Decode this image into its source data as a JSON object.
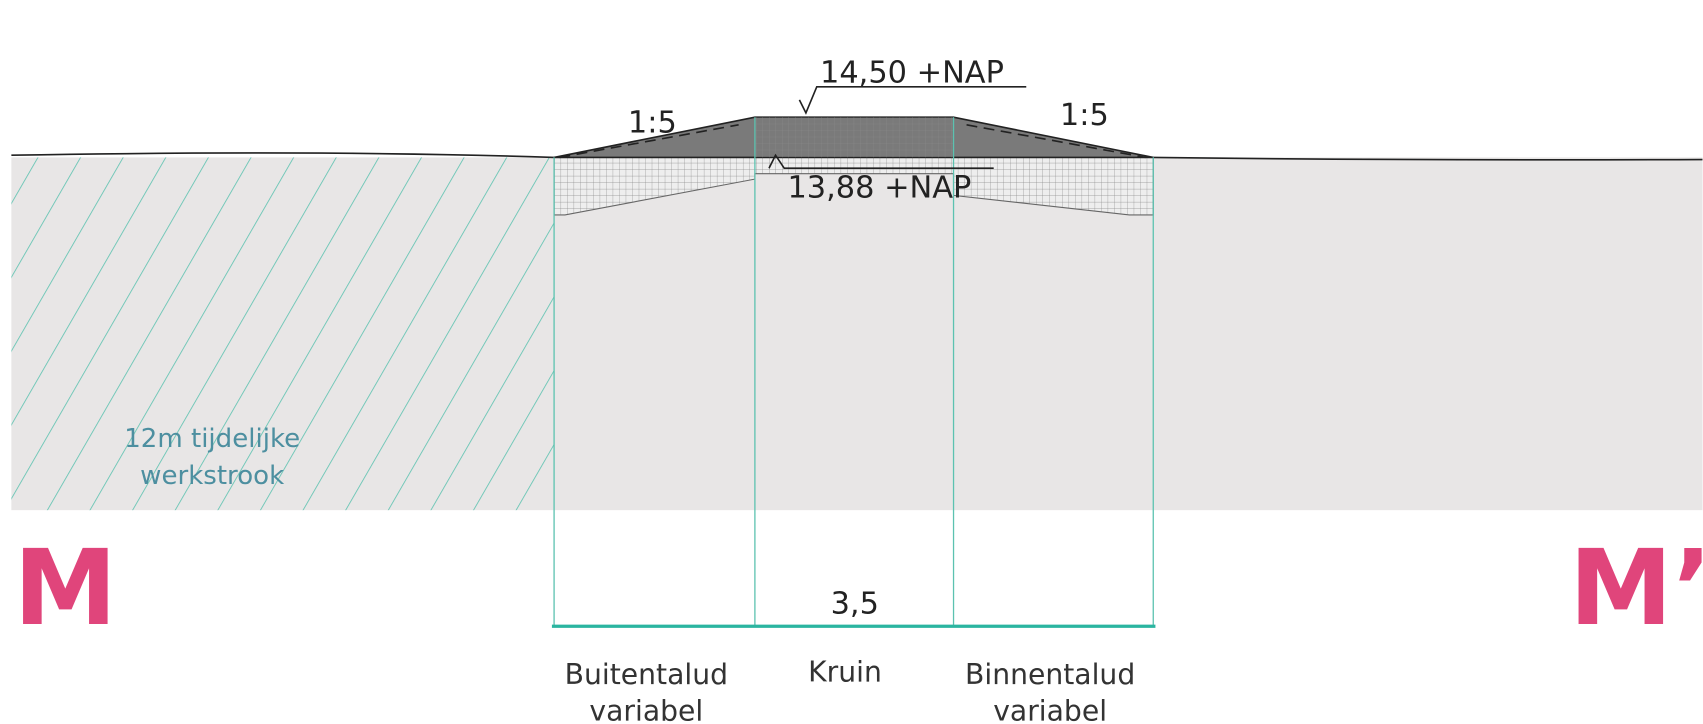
{
  "elevations": {
    "crest": "14,50 +NAP",
    "ground": "13,88 +NAP"
  },
  "slopes": {
    "outer": "1:5",
    "inner": "1:5"
  },
  "work_strip": {
    "line1": "12m tijdelijke",
    "line2": "werkstrook"
  },
  "section": {
    "start": "M",
    "end": "M’"
  },
  "width": "3,5",
  "zones": [
    {
      "name": "Buitentalud",
      "note": "variabel"
    },
    {
      "name": "Kruin"
    },
    {
      "name": "Binnentalud",
      "note": "variabel"
    }
  ]
}
